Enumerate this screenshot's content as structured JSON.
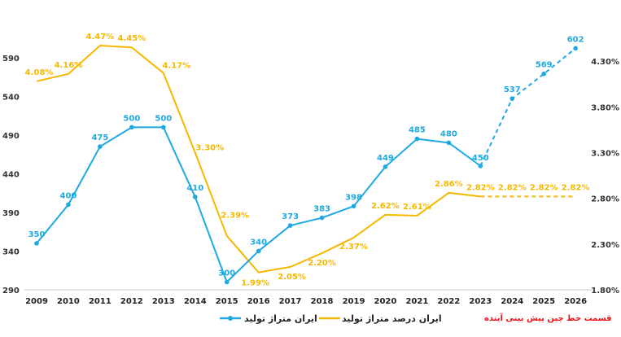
{
  "chart_data": {
    "type": "line",
    "categories": [
      "2009",
      "2010",
      "2011",
      "2012",
      "2013",
      "2014",
      "2015",
      "2016",
      "2017",
      "2018",
      "2019",
      "2020",
      "2021",
      "2022",
      "2023",
      "2024",
      "2025",
      "2026"
    ],
    "series": [
      {
        "name": "ایران متراژ تولید",
        "axis": "left",
        "color": "#1fa9e1",
        "values": [
          350,
          400,
          475,
          500,
          500,
          410,
          300,
          340,
          373,
          383,
          398,
          449,
          485,
          480,
          450,
          537,
          569,
          602
        ],
        "labels": [
          "350",
          "400",
          "475",
          "500",
          "500",
          "410",
          "300",
          "340",
          "373",
          "383",
          "398",
          "449",
          "485",
          "480",
          "450",
          "537",
          "569",
          "602"
        ],
        "forecast_from_index": 14
      },
      {
        "name": "ایران درصد متراژ تولید",
        "axis": "right",
        "color": "#f5b800",
        "values": [
          4.08,
          4.16,
          4.47,
          4.45,
          4.17,
          3.3,
          2.39,
          1.99,
          2.05,
          2.2,
          2.37,
          2.62,
          2.61,
          2.86,
          2.82,
          2.82,
          2.82,
          2.82
        ],
        "labels": [
          "4.08%",
          "4.16%",
          "4.47%",
          "4.45%",
          "4.17%",
          "3.30%",
          "2.39%",
          "1.99%",
          "2.05%",
          "2.20%",
          "2.37%",
          "2.62%",
          "2.61%",
          "2.86%",
          "2.82%",
          "2.82%",
          "2.82%",
          "2.82%"
        ],
        "forecast_from_index": 14
      }
    ],
    "y_left": {
      "min": 290,
      "max": 615,
      "ticks": [
        290,
        340,
        390,
        440,
        490,
        540,
        590
      ],
      "tick_labels": [
        "290",
        "340",
        "390",
        "440",
        "490",
        "540",
        "590"
      ]
    },
    "y_right": {
      "min": 1.8,
      "max": 4.55,
      "ticks": [
        1.8,
        2.3,
        2.8,
        3.3,
        3.8,
        4.3
      ],
      "tick_labels": [
        "1.80%",
        "2.30%",
        "2.80%",
        "3.30%",
        "3.80%",
        "4.30%"
      ]
    },
    "legend": [
      "ایران درصد متراژ تولید",
      "ایران متراژ تولید"
    ],
    "forecast_note": "قسمت خط چین پیش بینی آینده",
    "grid": false
  },
  "colors": {
    "blue": "#1fa9e1",
    "orange": "#f5b800",
    "note": "#e8141b",
    "axis": "#c8c8c8"
  }
}
